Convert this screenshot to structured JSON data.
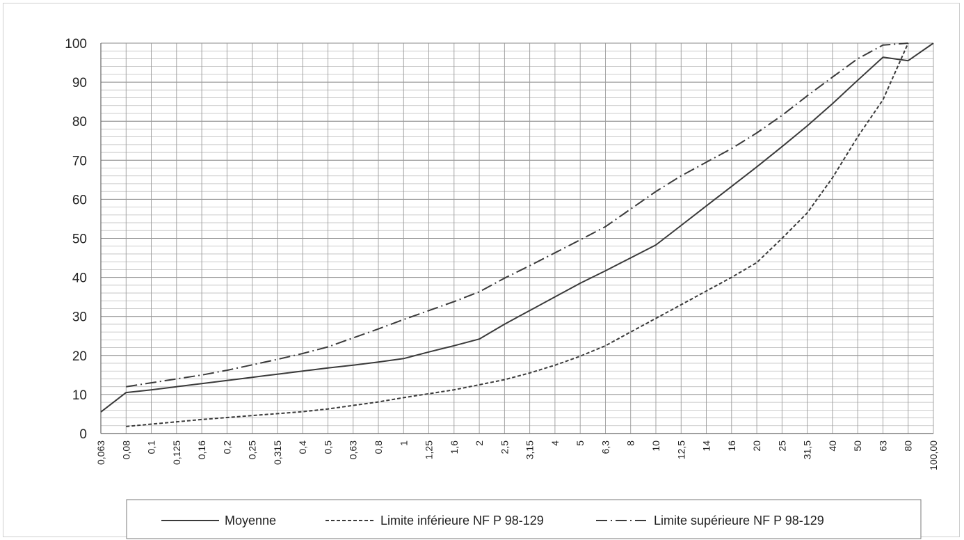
{
  "chart_data": {
    "type": "line",
    "categories": [
      "0,063",
      "0,08",
      "0,1",
      "0,125",
      "0,16",
      "0,2",
      "0,25",
      "0,315",
      "0,4",
      "0,5",
      "0,63",
      "0,8",
      "1",
      "1,25",
      "1,6",
      "2",
      "2,5",
      "3,15",
      "4",
      "5",
      "6,3",
      "8",
      "10",
      "12,5",
      "14",
      "16",
      "20",
      "25",
      "31,5",
      "40",
      "50",
      "63",
      "80",
      "100,00"
    ],
    "ylim": [
      0,
      100
    ],
    "yticks": [
      0,
      10,
      20,
      30,
      40,
      50,
      60,
      70,
      80,
      90,
      100
    ],
    "y_minor_step": 2,
    "grid": true,
    "legend_position": "bottom",
    "series": [
      {
        "name": "Moyenne",
        "style": "solid",
        "color": "#3a3a3a",
        "values": [
          5.5,
          10.5,
          11.2,
          12.0,
          12.8,
          13.6,
          14.4,
          15.2,
          16.0,
          16.8,
          17.5,
          18.3,
          19.2,
          20.9,
          22.5,
          24.2,
          28.0,
          31.5,
          35.0,
          38.5,
          41.7,
          45.0,
          48.3,
          53.3,
          58.3,
          63.3,
          68.3,
          73.5,
          78.8,
          84.5,
          90.5,
          96.4,
          95.5,
          100
        ]
      },
      {
        "name": "Limite inférieure NF P 98-129",
        "style": "dashed",
        "color": "#3a3a3a",
        "values": [
          null,
          1.8,
          2.4,
          3.0,
          3.6,
          4.1,
          4.6,
          5.1,
          5.6,
          6.3,
          7.2,
          8.1,
          9.2,
          10.2,
          11.2,
          12.5,
          13.8,
          15.5,
          17.5,
          19.8,
          22.5,
          26.0,
          29.5,
          33.0,
          36.5,
          40.0,
          43.8,
          50.0,
          56.5,
          65.5,
          76.0,
          85.5,
          100,
          null
        ]
      },
      {
        "name": "Limite supérieure NF P 98-129",
        "style": "dashdot",
        "color": "#3a3a3a",
        "values": [
          null,
          12.0,
          13.0,
          14.0,
          15.0,
          16.2,
          17.6,
          19.0,
          20.5,
          22.2,
          24.5,
          26.8,
          29.2,
          31.5,
          33.8,
          36.3,
          39.8,
          43.0,
          46.3,
          49.6,
          53.0,
          57.5,
          62.0,
          66.0,
          69.5,
          73.0,
          77.0,
          81.5,
          86.5,
          91.3,
          96.0,
          99.5,
          100,
          null
        ]
      }
    ]
  }
}
